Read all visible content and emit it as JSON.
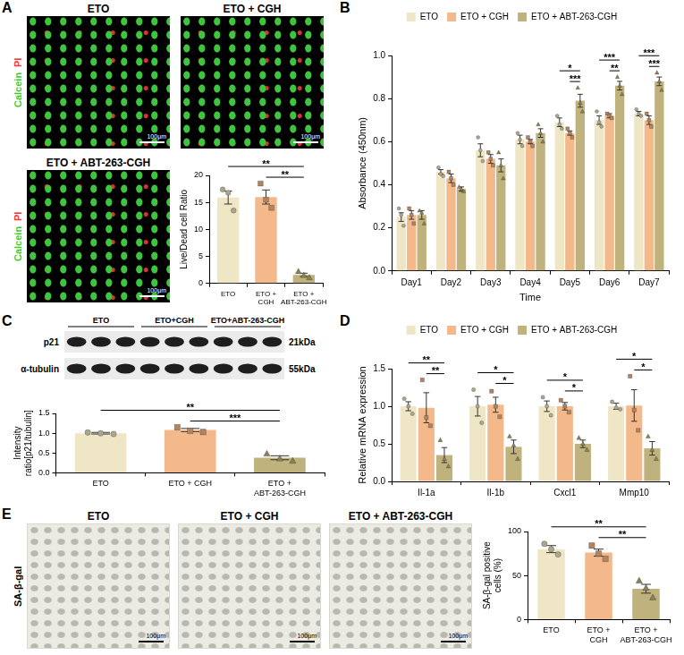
{
  "panels": [
    {
      "letter": "A",
      "images": [
        {
          "title": "ETO"
        },
        {
          "title": "ETO + CGH"
        },
        {
          "title": "ETO + ABT-263-CGH"
        }
      ],
      "stain_labels": [
        {
          "text": "Calcein",
          "color": "#33cc33"
        },
        {
          "text": "PI",
          "color": "#ff3333"
        }
      ],
      "scale_bar": "100μm"
    },
    {
      "letter": "B"
    },
    {
      "letter": "C",
      "blot": {
        "groups": [
          "ETO",
          "ETO+CGH",
          "ETO+ABT-263-CGH"
        ],
        "rows": [
          {
            "protein": "p21",
            "size": "21kDa"
          },
          {
            "protein": "α-tubulin",
            "size": "55kDa"
          }
        ]
      }
    },
    {
      "letter": "D"
    },
    {
      "letter": "E",
      "images": [
        {
          "title": "ETO"
        },
        {
          "title": "ETO + CGH"
        },
        {
          "title": "ETO + ABT-263-CGH"
        }
      ],
      "stain_labels": [
        {
          "text": "SA-β-gal",
          "color": "#000000"
        }
      ],
      "scale_bar": "100μm"
    }
  ],
  "chart_data": [
    {
      "type": "bar",
      "y_label": "Live/Dead cell Ratio",
      "categories": [
        "ETO",
        "ETO + CGH",
        "ETO + ABT-263-CGH"
      ],
      "values": [
        15.9,
        16.0,
        1.6
      ],
      "errors": [
        1.2,
        1.3,
        0.3
      ],
      "points": [
        [
          17.4,
          16.8,
          13.5
        ],
        [
          18.5,
          15.5,
          14.0
        ],
        [
          2.2,
          1.5,
          1.1
        ]
      ],
      "colors": [
        "#efe6c6",
        "#f4b98a",
        "#bfb27c"
      ],
      "ylim": [
        0,
        20
      ],
      "yticks": [
        0,
        5,
        10,
        15,
        20
      ],
      "grid": false,
      "annotations": [
        {
          "between": [
            "ETO",
            "ETO + ABT-263-CGH"
          ],
          "text": "**"
        },
        {
          "between": [
            "ETO + CGH",
            "ETO + ABT-263-CGH"
          ],
          "text": "**"
        }
      ]
    },
    {
      "type": "bar",
      "x_label": "Time",
      "y_label": "Absorbance (450nm)",
      "categories": [
        "Day1",
        "Day2",
        "Day3",
        "Day4",
        "Day5",
        "Day6",
        "Day7"
      ],
      "series": [
        {
          "name": "ETO",
          "color": "#efe6c6",
          "values": [
            0.25,
            0.46,
            0.56,
            0.61,
            0.69,
            0.7,
            0.73
          ],
          "errors": [
            0.02,
            0.01,
            0.03,
            0.02,
            0.02,
            0.02,
            0.01
          ],
          "points": [
            [
              0.29,
              0.26,
              0.21
            ],
            [
              0.48,
              0.45,
              0.44
            ],
            [
              0.62,
              0.56,
              0.51
            ],
            [
              0.64,
              0.61,
              0.58
            ],
            [
              0.72,
              0.68,
              0.66
            ],
            [
              0.74,
              0.69,
              0.67
            ],
            [
              0.75,
              0.73,
              0.72
            ]
          ]
        },
        {
          "name": "ETO + CGH",
          "color": "#f4b98a",
          "values": [
            0.26,
            0.43,
            0.52,
            0.6,
            0.64,
            0.72,
            0.7
          ],
          "errors": [
            0.02,
            0.02,
            0.02,
            0.01,
            0.01,
            0.01,
            0.02
          ],
          "points": [
            [
              0.29,
              0.26,
              0.22
            ],
            [
              0.46,
              0.43,
              0.4
            ],
            [
              0.55,
              0.52,
              0.49
            ],
            [
              0.62,
              0.6,
              0.58
            ],
            [
              0.66,
              0.64,
              0.62
            ],
            [
              0.73,
              0.72,
              0.71
            ],
            [
              0.73,
              0.7,
              0.67
            ]
          ]
        },
        {
          "name": "ETO + ABT-263-CGH",
          "color": "#bfb27c",
          "values": [
            0.26,
            0.38,
            0.49,
            0.64,
            0.79,
            0.86,
            0.88
          ],
          "errors": [
            0.02,
            0.01,
            0.03,
            0.02,
            0.03,
            0.02,
            0.02
          ],
          "points": [
            [
              0.28,
              0.27,
              0.22
            ],
            [
              0.39,
              0.38,
              0.37
            ],
            [
              0.55,
              0.49,
              0.43
            ],
            [
              0.68,
              0.64,
              0.6
            ],
            [
              0.85,
              0.78,
              0.74
            ],
            [
              0.9,
              0.86,
              0.82
            ],
            [
              0.92,
              0.88,
              0.84
            ]
          ]
        }
      ],
      "ylim": [
        0,
        1
      ],
      "yticks": [
        {
          "value": 0,
          "label": "0.0"
        },
        0.2,
        0.4,
        0.6,
        0.8,
        {
          "value": 1,
          "label": "1.0"
        }
      ],
      "grid": false,
      "legend": "top",
      "annotations": [
        {
          "category": "Day5",
          "between": [
            "ETO",
            "ETO + ABT-263-CGH"
          ],
          "text": "*"
        },
        {
          "category": "Day5",
          "between": [
            "ETO + CGH",
            "ETO + ABT-263-CGH"
          ],
          "text": "***"
        },
        {
          "category": "Day6",
          "between": [
            "ETO",
            "ETO + ABT-263-CGH"
          ],
          "text": "***"
        },
        {
          "category": "Day6",
          "between": [
            "ETO + CGH",
            "ETO + ABT-263-CGH"
          ],
          "text": "**"
        },
        {
          "category": "Day7",
          "between": [
            "ETO",
            "ETO + ABT-263-CGH"
          ],
          "text": "***"
        },
        {
          "category": "Day7",
          "between": [
            "ETO + CGH",
            "ETO + ABT-263-CGH"
          ],
          "text": "***"
        }
      ]
    },
    {
      "type": "bar",
      "y_label": "Intensity ratio[p21/tubulin]",
      "categories": [
        "ETO",
        "ETO + CGH",
        "ETO + ABT-263-CGH"
      ],
      "values": [
        1.0,
        1.08,
        0.38
      ],
      "errors": [
        0.02,
        0.04,
        0.05
      ],
      "points": [
        [
          1.02,
          1.0,
          0.98
        ],
        [
          1.15,
          1.06,
          1.03
        ],
        [
          0.48,
          0.36,
          0.3
        ]
      ],
      "colors": [
        "#efe6c6",
        "#f4b98a",
        "#bfb27c"
      ],
      "ylim": [
        0,
        1.5
      ],
      "yticks": [
        {
          "value": 0,
          "label": "0.0"
        },
        0.5,
        {
          "value": 1,
          "label": "1.0"
        },
        1.5
      ],
      "grid": false,
      "annotations": [
        {
          "between": [
            "ETO",
            "ETO + ABT-263-CGH"
          ],
          "text": "**"
        },
        {
          "between": [
            "ETO + CGH",
            "ETO + ABT-263-CGH"
          ],
          "text": "***"
        }
      ]
    },
    {
      "type": "bar",
      "y_label": "Relative mRNA expression",
      "categories": [
        "Il-1a",
        "Il-1b",
        "Cxcl1",
        "Mmp10"
      ],
      "series": [
        {
          "name": "ETO",
          "color": "#efe6c6",
          "values": [
            1.0,
            1.0,
            1.0,
            1.0
          ],
          "errors": [
            0.06,
            0.13,
            0.07,
            0.04
          ],
          "points": [
            [
              1.1,
              1.0,
              0.9
            ],
            [
              1.22,
              1.0,
              0.78
            ],
            [
              1.12,
              1.0,
              0.88
            ],
            [
              1.06,
              0.98,
              0.96
            ]
          ]
        },
        {
          "name": "ETO + CGH",
          "color": "#f4b98a",
          "values": [
            0.98,
            1.02,
            1.0,
            1.01
          ],
          "errors": [
            0.2,
            0.1,
            0.05,
            0.21
          ],
          "points": [
            [
              1.35,
              0.85,
              0.74
            ],
            [
              1.2,
              1.0,
              0.86
            ],
            [
              1.08,
              1.0,
              0.92
            ],
            [
              1.4,
              0.95,
              0.68
            ]
          ]
        },
        {
          "name": "ETO + ABT-263-CGH",
          "color": "#bfb27c",
          "values": [
            0.35,
            0.46,
            0.5,
            0.44
          ],
          "errors": [
            0.1,
            0.09,
            0.05,
            0.09
          ],
          "points": [
            [
              0.55,
              0.3,
              0.2
            ],
            [
              0.6,
              0.48,
              0.3
            ],
            [
              0.58,
              0.5,
              0.42
            ],
            [
              0.6,
              0.42,
              0.3
            ]
          ]
        }
      ],
      "ylim": [
        0,
        1.5
      ],
      "yticks": [
        {
          "value": 0,
          "label": "0.0"
        },
        0.5,
        {
          "value": 1,
          "label": "1.0"
        },
        1.5
      ],
      "grid": false,
      "legend": "top",
      "annotations": [
        {
          "category": "Il-1a",
          "between": [
            "ETO",
            "ETO + ABT-263-CGH"
          ],
          "text": "**"
        },
        {
          "category": "Il-1a",
          "between": [
            "ETO + CGH",
            "ETO + ABT-263-CGH"
          ],
          "text": "**"
        },
        {
          "category": "Il-1b",
          "between": [
            "ETO",
            "ETO + ABT-263-CGH"
          ],
          "text": "*"
        },
        {
          "category": "Il-1b",
          "between": [
            "ETO + CGH",
            "ETO + ABT-263-CGH"
          ],
          "text": "*"
        },
        {
          "category": "Cxcl1",
          "between": [
            "ETO",
            "ETO + ABT-263-CGH"
          ],
          "text": "*"
        },
        {
          "category": "Cxcl1",
          "between": [
            "ETO + CGH",
            "ETO + ABT-263-CGH"
          ],
          "text": "*"
        },
        {
          "category": "Mmp10",
          "between": [
            "ETO",
            "ETO + ABT-263-CGH"
          ],
          "text": "*"
        },
        {
          "category": "Mmp10",
          "between": [
            "ETO + CGH",
            "ETO + ABT-263-CGH"
          ],
          "text": "*"
        }
      ]
    },
    {
      "type": "bar",
      "y_label": "SA-β-gal positive cells (%)",
      "categories": [
        "ETO",
        "ETO + CGH",
        "ETO + ABT-263-CGH"
      ],
      "values": [
        80,
        76,
        35
      ],
      "errors": [
        4,
        4,
        5
      ],
      "points": [
        [
          86,
          80,
          74
        ],
        [
          84,
          75,
          69
        ],
        [
          44,
          36,
          25
        ]
      ],
      "colors": [
        "#efe6c6",
        "#f4b98a",
        "#bfb27c"
      ],
      "ylim": [
        0,
        100
      ],
      "yticks": [
        0,
        50,
        100
      ],
      "grid": false,
      "annotations": [
        {
          "between": [
            "ETO",
            "ETO + ABT-263-CGH"
          ],
          "text": "**"
        },
        {
          "between": [
            "ETO + CGH",
            "ETO + ABT-263-CGH"
          ],
          "text": "**"
        }
      ]
    }
  ]
}
